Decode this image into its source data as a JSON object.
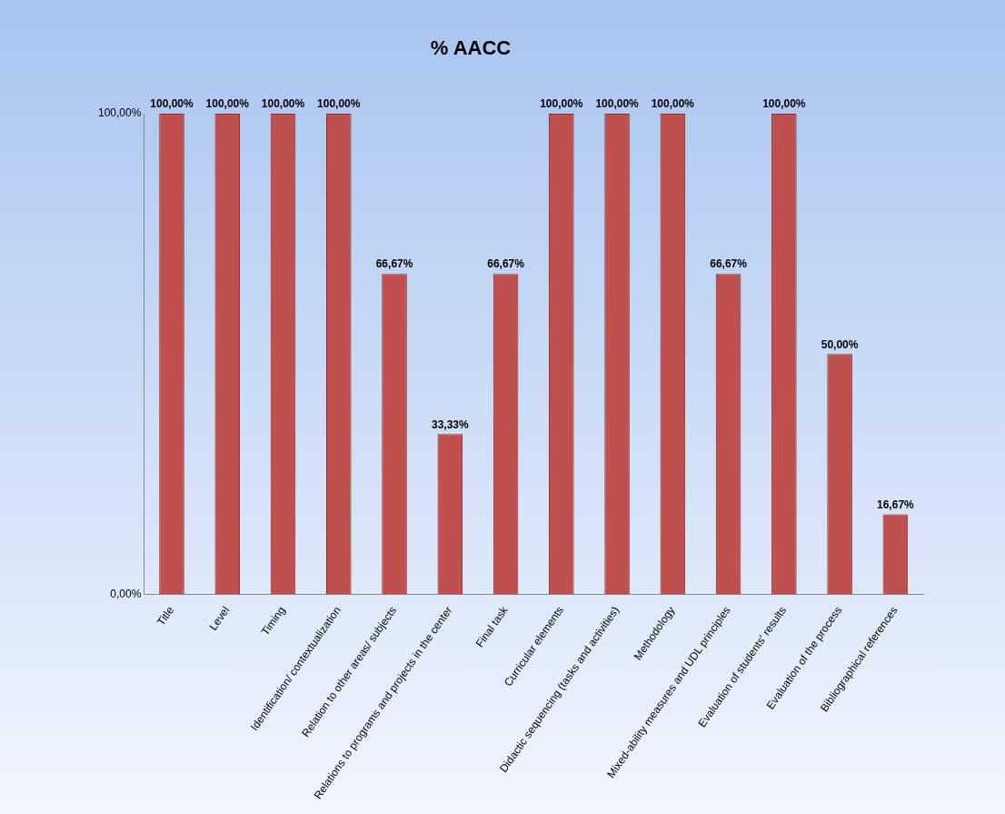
{
  "chart_data": {
    "type": "bar",
    "title": "% AACC",
    "categories": [
      "Title",
      "Level",
      "Timing",
      "Identification/ contextualization",
      "Relation to other areas/ subjects",
      "Relations to programs and projects in the center",
      "Final task",
      "Curricular elements",
      "Didactic sequencing (tasks and activities)",
      "Methodology",
      "Mixed-ability measures and UDL principles",
      "Evaluation of students' results",
      "Evaluation of the process",
      "Bibliographical references"
    ],
    "values": [
      100,
      100,
      100,
      100,
      66.67,
      33.33,
      66.67,
      100,
      100,
      100,
      66.67,
      100,
      50,
      16.67
    ],
    "value_labels": [
      "100,00%",
      "100,00%",
      "100,00%",
      "100,00%",
      "66,67%",
      "33,33%",
      "66,67%",
      "100,00%",
      "100,00%",
      "100,00%",
      "66,67%",
      "100,00%",
      "50,00%",
      "16,67%"
    ],
    "color": "#c0504d",
    "ylim": [
      0,
      100
    ],
    "yticks": [
      {
        "value": 0,
        "label": "0,00%"
      },
      {
        "value": 100,
        "label": "100,00%"
      }
    ],
    "legend": false
  }
}
